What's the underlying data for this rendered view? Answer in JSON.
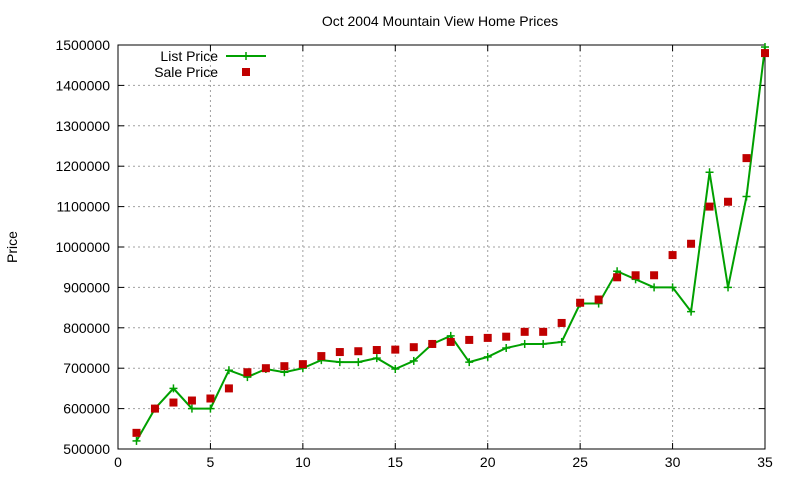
{
  "chart_data": {
    "type": "line",
    "title": "Oct 2004 Mountain View Home Prices",
    "xlabel": "",
    "ylabel": "Price",
    "xlim": [
      0,
      35
    ],
    "ylim": [
      500000,
      1500000
    ],
    "xticks": [
      0,
      5,
      10,
      15,
      20,
      25,
      30,
      35
    ],
    "yticks": [
      500000,
      600000,
      700000,
      800000,
      900000,
      1000000,
      1100000,
      1200000,
      1300000,
      1400000,
      1500000
    ],
    "grid": true,
    "legend_position": "top-left",
    "x": [
      1,
      2,
      3,
      4,
      5,
      6,
      7,
      8,
      9,
      10,
      11,
      12,
      13,
      14,
      15,
      16,
      17,
      18,
      19,
      20,
      21,
      22,
      23,
      24,
      25,
      26,
      27,
      28,
      29,
      30,
      31,
      32,
      33,
      34,
      35
    ],
    "series": [
      {
        "name": "List Price",
        "style": "linespoints",
        "marker": "plus",
        "color": "#00a000",
        "values": [
          520000,
          600000,
          650000,
          600000,
          600000,
          695000,
          678000,
          698000,
          690000,
          700000,
          720000,
          715000,
          715000,
          725000,
          698000,
          718000,
          760000,
          780000,
          715000,
          728000,
          750000,
          760000,
          760000,
          765000,
          860000,
          860000,
          940000,
          920000,
          900000,
          900000,
          840000,
          1185000,
          900000,
          1125000,
          1495000
        ]
      },
      {
        "name": "Sale Price",
        "style": "points",
        "marker": "square",
        "color": "#c00000",
        "values": [
          540000,
          600000,
          615000,
          620000,
          625000,
          650000,
          690000,
          700000,
          705000,
          710000,
          730000,
          740000,
          742000,
          745000,
          746000,
          752000,
          760000,
          765000,
          770000,
          775000,
          778000,
          790000,
          790000,
          812000,
          862000,
          870000,
          925000,
          930000,
          930000,
          980000,
          1008000,
          1100000,
          1112000,
          1220000,
          1480000
        ]
      }
    ]
  }
}
